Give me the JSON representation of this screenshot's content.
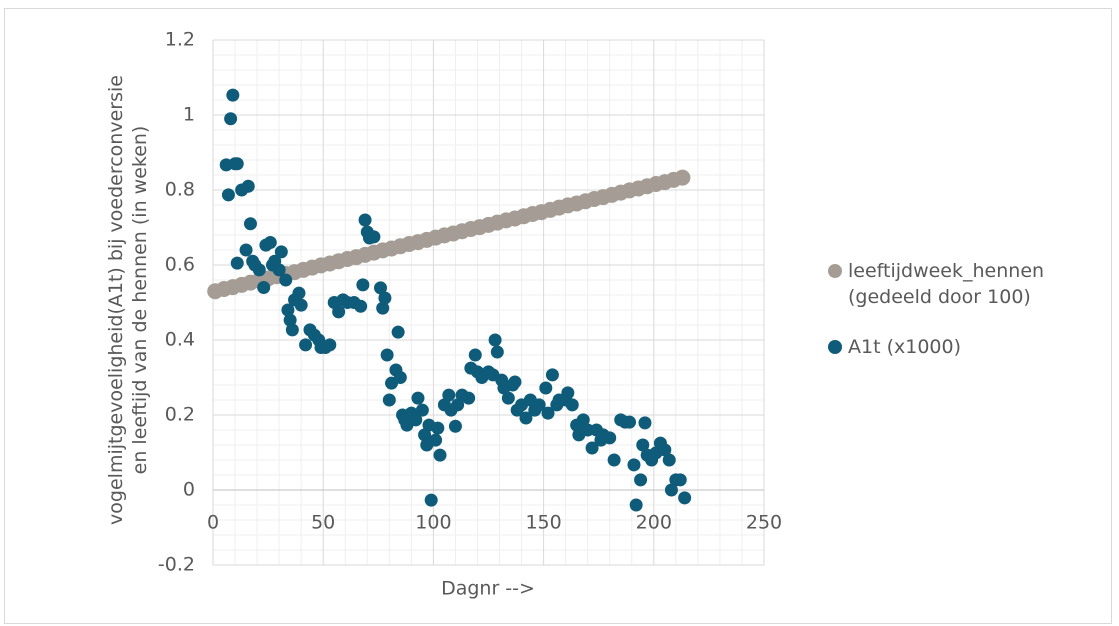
{
  "chart_data": {
    "type": "scatter",
    "xlabel": "Dagnr -->",
    "ylabel": "vogelmijtgevoeligheid(A1t) bij voederconversie en leeftijd van de hennen (in weken)",
    "xlim": [
      0,
      250
    ],
    "xticks": [
      0,
      50,
      100,
      150,
      200,
      250
    ],
    "ylim": [
      -0.2,
      1.2
    ],
    "yticks": [
      -0.2,
      0,
      0.2,
      0.4,
      0.6,
      0.8,
      1,
      1.2
    ],
    "grid": true,
    "minor_grid": true,
    "legend": "right",
    "series": [
      {
        "name": "leeftijdweek_hennen (gedeeld door 100)",
        "color": "#a59d95",
        "x": [
          1,
          5,
          9,
          13,
          17,
          21,
          25,
          29,
          33,
          37,
          41,
          45,
          49,
          53,
          57,
          61,
          65,
          69,
          73,
          77,
          81,
          85,
          89,
          93,
          97,
          101,
          105,
          109,
          113,
          117,
          121,
          125,
          129,
          133,
          137,
          141,
          145,
          149,
          153,
          157,
          161,
          165,
          169,
          173,
          177,
          181,
          185,
          189,
          193,
          197,
          201,
          205,
          209,
          213
        ],
        "values": [
          0.53,
          0.536,
          0.541,
          0.547,
          0.553,
          0.559,
          0.564,
          0.57,
          0.576,
          0.581,
          0.587,
          0.593,
          0.599,
          0.604,
          0.61,
          0.616,
          0.621,
          0.627,
          0.633,
          0.639,
          0.644,
          0.65,
          0.656,
          0.661,
          0.667,
          0.673,
          0.679,
          0.684,
          0.69,
          0.696,
          0.701,
          0.707,
          0.713,
          0.719,
          0.724,
          0.73,
          0.736,
          0.741,
          0.747,
          0.753,
          0.759,
          0.764,
          0.77,
          0.776,
          0.781,
          0.787,
          0.793,
          0.799,
          0.804,
          0.81,
          0.816,
          0.821,
          0.827,
          0.833
        ]
      },
      {
        "name": "A1t (x1000)",
        "color": "#0f5b7a",
        "x": [
          6,
          7,
          8,
          9,
          10,
          11,
          11,
          13,
          16,
          17,
          15,
          18,
          19,
          21,
          23,
          24,
          26,
          27,
          28,
          30,
          31,
          33,
          34,
          35,
          36,
          37,
          39,
          40,
          42,
          44,
          46,
          48,
          49,
          51,
          53,
          55,
          57,
          59,
          61,
          64,
          67,
          68,
          69,
          70,
          71,
          73,
          76,
          77,
          78,
          79,
          80,
          81,
          83,
          84,
          85,
          86,
          87,
          88,
          90,
          92,
          93,
          95,
          96,
          97,
          98,
          99,
          101,
          102,
          103,
          105,
          107,
          108,
          110,
          111,
          113,
          116,
          117,
          119,
          120,
          122,
          125,
          127,
          128,
          129,
          131,
          132,
          134,
          136,
          137,
          138,
          140,
          142,
          144,
          146,
          148,
          151,
          152,
          154,
          156,
          157,
          160,
          161,
          163,
          165,
          166,
          168,
          170,
          172,
          174,
          176,
          177,
          180,
          182,
          185,
          187,
          189,
          191,
          192,
          194,
          195,
          196,
          197,
          199,
          201,
          203,
          205,
          207,
          208,
          210,
          212,
          214
        ],
        "values": [
          0.867,
          0.787,
          0.99,
          1.053,
          0.87,
          0.87,
          0.605,
          0.8,
          0.81,
          0.71,
          0.64,
          0.61,
          0.6,
          0.587,
          0.54,
          0.653,
          0.66,
          0.6,
          0.61,
          0.587,
          0.635,
          0.56,
          0.48,
          0.453,
          0.427,
          0.507,
          0.525,
          0.493,
          0.387,
          0.427,
          0.413,
          0.4,
          0.38,
          0.38,
          0.387,
          0.5,
          0.475,
          0.507,
          0.5,
          0.5,
          0.49,
          0.547,
          0.72,
          0.688,
          0.672,
          0.675,
          0.539,
          0.485,
          0.512,
          0.36,
          0.24,
          0.285,
          0.32,
          0.421,
          0.3,
          0.2,
          0.187,
          0.173,
          0.205,
          0.187,
          0.245,
          0.213,
          0.147,
          0.12,
          0.173,
          -0.027,
          0.133,
          0.165,
          0.093,
          0.227,
          0.253,
          0.213,
          0.17,
          0.227,
          0.253,
          0.245,
          0.325,
          0.36,
          0.315,
          0.3,
          0.315,
          0.307,
          0.4,
          0.368,
          0.293,
          0.272,
          0.245,
          0.28,
          0.288,
          0.213,
          0.227,
          0.192,
          0.24,
          0.213,
          0.227,
          0.272,
          0.205,
          0.307,
          0.227,
          0.24,
          0.24,
          0.259,
          0.227,
          0.173,
          0.147,
          0.187,
          0.16,
          0.112,
          0.16,
          0.133,
          0.147,
          0.139,
          0.08,
          0.187,
          0.181,
          0.181,
          0.067,
          -0.04,
          0.027,
          0.12,
          0.179,
          0.093,
          0.08,
          0.099,
          0.125,
          0.107,
          0.08,
          0,
          0.027,
          0.027,
          -0.021
        ]
      }
    ]
  }
}
